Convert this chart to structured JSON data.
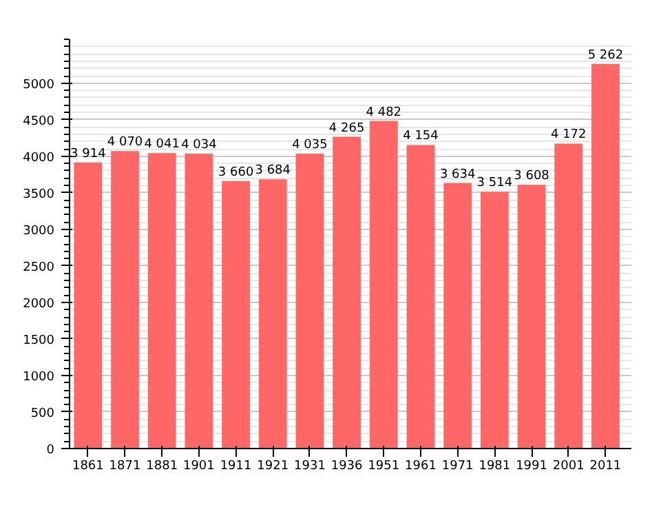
{
  "chart_data": {
    "type": "bar",
    "categories": [
      "1861",
      "1871",
      "1881",
      "1901",
      "1911",
      "1921",
      "1931",
      "1936",
      "1951",
      "1961",
      "1971",
      "1981",
      "1991",
      "2001",
      "2011"
    ],
    "values": [
      3914,
      4070,
      4041,
      4034,
      3660,
      3684,
      4035,
      4265,
      4482,
      4154,
      3634,
      3514,
      3608,
      4172,
      5262
    ],
    "value_labels": [
      "3 914",
      "4 070",
      "4 041",
      "4 034",
      "3 660",
      "3 684",
      "4 035",
      "4 265",
      "4 482",
      "4 154",
      "3 634",
      "3 514",
      "3 608",
      "4 172",
      "5 262"
    ],
    "color": "#ff6666",
    "ylim": [
      0,
      5600
    ],
    "yticks": [
      0,
      500,
      1000,
      1500,
      2000,
      2500,
      3000,
      3500,
      4000,
      4500,
      5000
    ],
    "grid": "y"
  }
}
